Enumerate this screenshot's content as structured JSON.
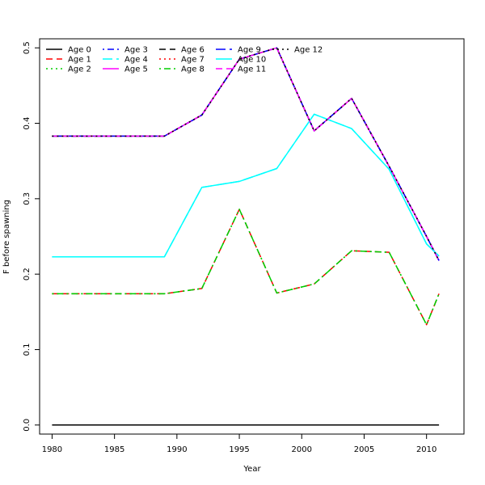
{
  "chart_data": {
    "type": "line",
    "title": "",
    "xlabel": "Year",
    "ylabel": "F before spawning",
    "xlim": [
      1979,
      2013
    ],
    "ylim": [
      -0.012,
      0.512
    ],
    "xticks": [
      1980,
      1985,
      1990,
      1995,
      2000,
      2005,
      2010
    ],
    "yticks": [
      0.0,
      0.1,
      0.2,
      0.3,
      0.4,
      0.5
    ],
    "xtick_labels": [
      "1980",
      "1985",
      "1990",
      "1995",
      "2000",
      "2005",
      "2010"
    ],
    "ytick_labels": [
      "0.0",
      "0.1",
      "0.2",
      "0.3",
      "0.4",
      "0.5"
    ],
    "grid": false,
    "legend_position": "top-left",
    "x": [
      1980,
      1989,
      1992,
      1995,
      1998,
      2001,
      2004,
      2007,
      2010,
      2011
    ],
    "series": [
      {
        "name": "Age 0",
        "color": "#000000",
        "dash": "solid",
        "values": [
          0,
          0,
          0,
          0,
          0,
          0,
          0,
          0,
          0,
          0
        ]
      },
      {
        "name": "Age 1",
        "color": "#ff0000",
        "dash": "dashed",
        "values": [
          0.174,
          0.174,
          0.181,
          0.286,
          0.175,
          0.187,
          0.231,
          0.229,
          0.133,
          0.174
        ]
      },
      {
        "name": "Age 2",
        "color": "#00cd00",
        "dash": "dotted",
        "values": [
          0.174,
          0.174,
          0.181,
          0.286,
          0.175,
          0.187,
          0.231,
          0.229,
          0.133,
          0.174
        ]
      },
      {
        "name": "Age 3",
        "color": "#0000ff",
        "dash": "dotdash",
        "values": [
          0.383,
          0.383,
          0.411,
          0.485,
          0.5,
          0.39,
          0.433,
          0.343,
          0.25,
          0.218
        ]
      },
      {
        "name": "Age 4",
        "color": "#00ffff",
        "dash": "longdash",
        "values": [
          0.223,
          0.223,
          0.315,
          0.323,
          0.34,
          0.412,
          0.393,
          0.339,
          0.24,
          0.224
        ]
      },
      {
        "name": "Age 5",
        "color": "#ff00ff",
        "dash": "solid",
        "values": [
          0.383,
          0.383,
          0.411,
          0.485,
          0.5,
          0.39,
          0.433,
          0.343,
          0.25,
          0.218
        ]
      },
      {
        "name": "Age 6",
        "color": "#000000",
        "dash": "dashed",
        "values": [
          0.383,
          0.383,
          0.411,
          0.485,
          0.5,
          0.39,
          0.433,
          0.343,
          0.25,
          0.218
        ]
      },
      {
        "name": "Age 7",
        "color": "#ff0000",
        "dash": "dotted",
        "values": [
          0.383,
          0.383,
          0.411,
          0.485,
          0.5,
          0.39,
          0.433,
          0.343,
          0.25,
          0.218
        ]
      },
      {
        "name": "Age 8",
        "color": "#00cd00",
        "dash": "dotdash",
        "values": [
          0.174,
          0.174,
          0.181,
          0.286,
          0.175,
          0.187,
          0.231,
          0.229,
          0.133,
          0.174
        ]
      },
      {
        "name": "Age 9",
        "color": "#0000ff",
        "dash": "longdash",
        "values": [
          0.383,
          0.383,
          0.411,
          0.485,
          0.5,
          0.39,
          0.433,
          0.343,
          0.25,
          0.218
        ]
      },
      {
        "name": "Age 10",
        "color": "#00ffff",
        "dash": "solid",
        "values": [
          0.223,
          0.223,
          0.315,
          0.323,
          0.34,
          0.412,
          0.393,
          0.339,
          0.24,
          0.224
        ]
      },
      {
        "name": "Age 11",
        "color": "#ff00ff",
        "dash": "dashed",
        "values": [
          0.383,
          0.383,
          0.411,
          0.485,
          0.5,
          0.39,
          0.433,
          0.343,
          0.25,
          0.218
        ]
      },
      {
        "name": "Age 12",
        "color": "#000000",
        "dash": "dotted",
        "values": [
          0.383,
          0.383,
          0.411,
          0.485,
          0.5,
          0.39,
          0.433,
          0.343,
          0.25,
          0.218
        ]
      }
    ]
  }
}
